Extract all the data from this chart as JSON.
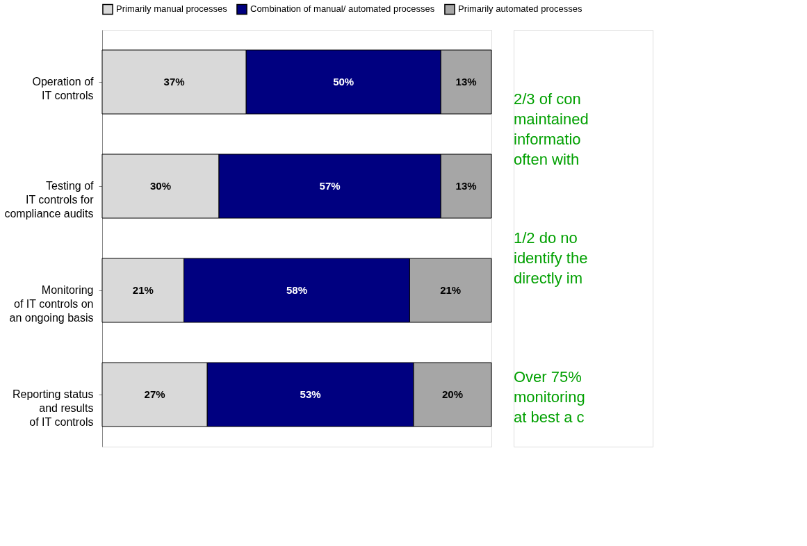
{
  "chart_data": {
    "type": "bar",
    "orientation": "horizontal",
    "stacked": true,
    "legend": "top",
    "data_labels": true,
    "categories": [
      "Operation of\nIT controls",
      "Testing of\nIT controls for\ncompliance audits",
      "Monitoring\nof IT controls on\nan ongoing basis",
      "Reporting status\nand results\nof IT controls"
    ],
    "series": [
      {
        "name": "Primarily manual processes",
        "color": "#d9d9d9",
        "values": [
          37,
          30,
          21,
          27
        ],
        "value_labels": [
          "37%",
          "30%",
          "21%",
          "27%"
        ]
      },
      {
        "name": "Combination of manual/ automated processes",
        "color": "#000080",
        "values": [
          50,
          57,
          58,
          53
        ],
        "value_labels": [
          "50%",
          "57%",
          "58%",
          "53%"
        ]
      },
      {
        "name": "Primarily automated processes",
        "color": "#a6a6a6",
        "values": [
          13,
          13,
          21,
          20
        ],
        "value_labels": [
          "13%",
          "13%",
          "21%",
          "20%"
        ]
      }
    ],
    "annotations": [
      "2/3  of con\nmaintained\ninformatio\noften with",
      "1/2  do no\nidentify the\ndirectly im",
      "Over 75%\nmonitoring\nat best a c"
    ]
  }
}
